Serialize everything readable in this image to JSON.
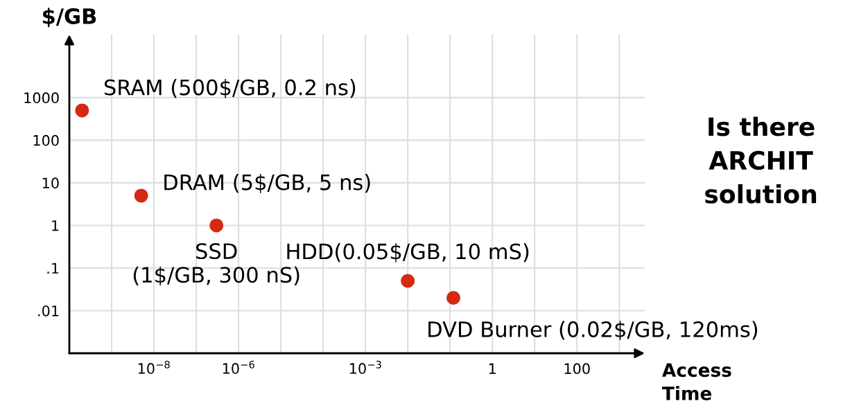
{
  "chart_data": {
    "type": "scatter",
    "xlabel": "Access\nTime",
    "ylabel": "$/GB",
    "log": "xy",
    "grid": true,
    "marker": "circle",
    "xlim": [
      1e-10,
      4000
    ],
    "ylim": [
      0.001,
      30000
    ],
    "xticks": [
      {
        "value": 1e-09,
        "label": null
      },
      {
        "value": 1e-08,
        "label": "10$^{−8}$"
      },
      {
        "value": 1e-07,
        "label": null
      },
      {
        "value": 1e-06,
        "label": "10$^{−6}$"
      },
      {
        "value": 1e-05,
        "label": null
      },
      {
        "value": 0.0001,
        "label": null
      },
      {
        "value": 0.001,
        "label": "10$^{−3}$"
      },
      {
        "value": 0.01,
        "label": null
      },
      {
        "value": 0.1,
        "label": null
      },
      {
        "value": 1,
        "label": "1"
      },
      {
        "value": 10,
        "label": null
      },
      {
        "value": 100,
        "label": "100"
      },
      {
        "value": 1000,
        "label": null
      }
    ],
    "yticks": [
      {
        "value": 0.01,
        "label": ".01"
      },
      {
        "value": 0.1,
        "label": ".1"
      },
      1,
      10,
      100,
      1000
    ],
    "x": [
      2e-10,
      5e-09,
      3e-07,
      0.01,
      0.12
    ],
    "series": [
      {
        "color": "#d42a14",
        "values": [
          500,
          5,
          1,
          0.05,
          0.02
        ]
      }
    ],
    "annotations": [
      {
        "text": "SRAM (500$/GB, 0.2 ns)",
        "x": 2e-10,
        "y": 500
      },
      {
        "text": "DRAM (5$/GB, 5 ns)",
        "x": 5e-09,
        "y": 5
      },
      {
        "text": "SSD\n(1$/GB, 300 nS)",
        "x": 3e-07,
        "y": 1
      },
      {
        "text": "HDD(0.05$/GB, 10 mS)",
        "x": 0.01,
        "y": 0.05
      },
      {
        "text": "DVD Burner (0.02$/GB, 120ms)",
        "x": 0.12,
        "y": 0.02
      },
      "Is there\nARCHIT\nsolution"
    ]
  }
}
